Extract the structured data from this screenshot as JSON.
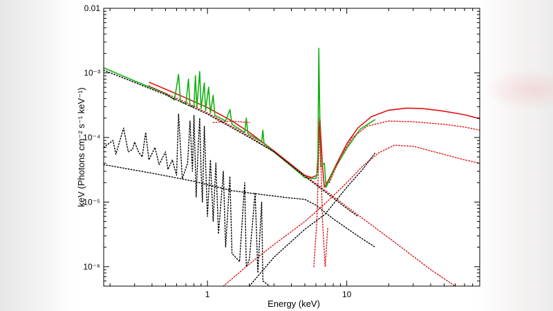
{
  "chart_data": {
    "type": "line",
    "xlabel": "Energy (keV)",
    "ylabel": "keV (Photons cm⁻² s⁻¹ keV⁻¹)",
    "x_scale": "log",
    "y_scale": "log",
    "xlim": [
      0.18,
      90
    ],
    "ylim": [
      5e-07,
      0.01
    ],
    "x_ticks": [
      {
        "value": 1,
        "label": "1"
      },
      {
        "value": 10,
        "label": "10"
      }
    ],
    "y_ticks": [
      {
        "value": 0.01,
        "label": "0.01"
      },
      {
        "value": 0.001,
        "label": "10⁻³"
      },
      {
        "value": 0.0001,
        "label": "10⁻⁴"
      },
      {
        "value": 1e-05,
        "label": "10⁻⁵"
      },
      {
        "value": 1e-06,
        "label": "10⁻⁶"
      }
    ],
    "colors": {
      "red": "#e01010",
      "green": "#10b010",
      "black": "#000000"
    },
    "series": [
      {
        "color": "red",
        "style": "solid",
        "points": [
          [
            0.38,
            0.00072
          ],
          [
            0.5,
            0.00056
          ],
          [
            0.7,
            0.00041
          ],
          [
            1.0,
            0.00029
          ],
          [
            1.5,
            0.00018
          ],
          [
            2.0,
            0.00012
          ],
          [
            3.0,
            6.2e-05
          ],
          [
            4.0,
            3.8e-05
          ],
          [
            5.0,
            2.6e-05
          ],
          [
            5.6,
            2.4e-05
          ],
          [
            6.1,
            2.6e-05
          ],
          [
            6.3,
            0.0001
          ],
          [
            6.4,
            0.00021
          ],
          [
            6.5,
            0.00011
          ],
          [
            6.7,
            3.5e-05
          ],
          [
            6.9,
            1.7e-05
          ],
          [
            7.4,
            2.2e-05
          ],
          [
            8.5,
            4e-05
          ],
          [
            10,
            8e-05
          ],
          [
            12,
            0.00014
          ],
          [
            15,
            0.00021
          ],
          [
            20,
            0.000265
          ],
          [
            27,
            0.000285
          ],
          [
            35,
            0.00028
          ],
          [
            50,
            0.000255
          ],
          [
            70,
            0.000225
          ],
          [
            90,
            0.000195
          ]
        ]
      },
      {
        "color": "green",
        "style": "solid",
        "points": [
          [
            0.18,
            0.0012
          ],
          [
            0.3,
            0.00075
          ],
          [
            0.5,
            0.00048
          ],
          [
            0.58,
            0.00038
          ],
          [
            0.62,
            0.00095
          ],
          [
            0.64,
            0.00036
          ],
          [
            0.7,
            0.00033
          ],
          [
            0.73,
            0.0008
          ],
          [
            0.75,
            0.00031
          ],
          [
            0.8,
            0.0003
          ],
          [
            0.82,
            0.0009
          ],
          [
            0.84,
            0.00029
          ],
          [
            0.88,
            0.00105
          ],
          [
            0.9,
            0.00028
          ],
          [
            0.95,
            0.0007
          ],
          [
            0.97,
            0.00026
          ],
          [
            1.02,
            0.0006
          ],
          [
            1.05,
            0.00024
          ],
          [
            1.1,
            0.00045
          ],
          [
            1.13,
            0.00022
          ],
          [
            1.35,
            0.00018
          ],
          [
            1.45,
            0.00027
          ],
          [
            1.5,
            0.00016
          ],
          [
            1.85,
            0.00012
          ],
          [
            1.9,
            0.0002
          ],
          [
            1.95,
            0.000115
          ],
          [
            2.45,
            8.5e-05
          ],
          [
            2.5,
            0.00013
          ],
          [
            2.55,
            8e-05
          ],
          [
            3.0,
            6e-05
          ],
          [
            4.0,
            3.6e-05
          ],
          [
            5.0,
            2.4e-05
          ],
          [
            6.0,
            2.3e-05
          ],
          [
            6.2,
            3.2e-05
          ],
          [
            6.3,
            0.0024
          ],
          [
            6.4,
            0.00023
          ],
          [
            6.5,
            3.5e-05
          ],
          [
            6.9,
            4e-05
          ],
          [
            7.1,
            1.7e-05
          ],
          [
            8.0,
            3e-05
          ],
          [
            10,
            6.8e-05
          ],
          [
            12.5,
            0.000135
          ],
          [
            16,
            0.00019
          ]
        ]
      },
      {
        "color": "red",
        "style": "dotted",
        "points": [
          [
            0.38,
            0.00063
          ],
          [
            0.7,
            0.00035
          ],
          [
            1.0,
            0.00024
          ],
          [
            2.0,
            0.000105
          ],
          [
            3.0,
            6e-05
          ],
          [
            5.0,
            2.6e-05
          ],
          [
            10,
            8.5e-06
          ],
          [
            20,
            2.8e-06
          ],
          [
            40,
            9e-07
          ],
          [
            60,
            5e-07
          ]
        ]
      },
      {
        "color": "red",
        "style": "dotted",
        "points": [
          [
            1.3,
            5e-07
          ],
          [
            2.0,
            1.1e-06
          ],
          [
            3.0,
            2.2e-06
          ],
          [
            5.0,
            5e-06
          ],
          [
            7.0,
            9.5e-06
          ],
          [
            10,
            2e-05
          ],
          [
            13,
            3.6e-05
          ],
          [
            17,
            5.8e-05
          ],
          [
            22,
            7.6e-05
          ],
          [
            30,
            7.3e-05
          ],
          [
            45,
            5.8e-05
          ],
          [
            70,
            4.5e-05
          ],
          [
            90,
            4e-05
          ]
        ]
      },
      {
        "color": "red",
        "style": "dotted",
        "points": [
          [
            7.5,
            2e-05
          ],
          [
            9,
            5e-05
          ],
          [
            11,
            0.0001
          ],
          [
            14,
            0.00015
          ],
          [
            20,
            0.00018
          ],
          [
            30,
            0.000175
          ],
          [
            50,
            0.00016
          ],
          [
            70,
            0.000145
          ],
          [
            90,
            0.00013
          ]
        ]
      },
      {
        "color": "red",
        "style": "dotted",
        "points": [
          [
            1.1,
            0.00017
          ],
          [
            1.5,
            0.00018
          ],
          [
            2.0,
            0.00017
          ]
        ]
      },
      {
        "color": "red",
        "style": "dotted",
        "points": [
          [
            5.8,
            1e-06
          ],
          [
            6.1,
            5e-06
          ],
          [
            6.4,
            0.00018
          ],
          [
            6.7,
            5e-06
          ],
          [
            7.0,
            1e-06
          ],
          [
            7.3,
            4e-06
          ]
        ]
      },
      {
        "color": "black",
        "style": "dotted",
        "points": [
          [
            0.18,
            0.0011
          ],
          [
            0.5,
            0.00046
          ],
          [
            1.0,
            0.00023
          ],
          [
            2.0,
            0.0001
          ],
          [
            3.0,
            6e-05
          ],
          [
            5.0,
            2.5e-05
          ],
          [
            10,
            8e-06
          ],
          [
            12,
            6e-06
          ]
        ]
      },
      {
        "color": "black",
        "style": "dotted",
        "points": [
          [
            0.18,
            3.8e-05
          ],
          [
            0.4,
            2.8e-05
          ],
          [
            0.8,
            2.1e-05
          ],
          [
            1.5,
            1.5e-05
          ],
          [
            2.5,
            1.3e-05
          ],
          [
            4.0,
            1.15e-05
          ],
          [
            5.0,
            1.1e-05
          ],
          [
            6.0,
            9e-06
          ],
          [
            8.0,
            5.5e-06
          ],
          [
            12,
            3e-06
          ],
          [
            16,
            2e-06
          ]
        ]
      },
      {
        "color": "black",
        "style": "dotted",
        "points": [
          [
            2.0,
            5e-07
          ],
          [
            3.0,
            1.4e-06
          ],
          [
            5.0,
            3.8e-06
          ],
          [
            7.0,
            6.5e-06
          ],
          [
            10,
            1.7e-05
          ],
          [
            13,
            3.2e-05
          ],
          [
            16,
            5.8e-05
          ]
        ]
      },
      {
        "color": "black",
        "style": "dotted",
        "points": [
          [
            0.18,
            7e-05
          ],
          [
            0.21,
            9e-05
          ],
          [
            0.22,
            5.5e-05
          ],
          [
            0.25,
            0.00014
          ],
          [
            0.27,
            6e-05
          ],
          [
            0.29,
            6.5e-05
          ],
          [
            0.3,
            8.5e-05
          ],
          [
            0.32,
            6e-05
          ],
          [
            0.34,
            5e-05
          ],
          [
            0.36,
            0.00012
          ],
          [
            0.38,
            4.5e-05
          ],
          [
            0.42,
            7e-05
          ],
          [
            0.45,
            3.8e-05
          ],
          [
            0.5,
            6e-05
          ],
          [
            0.52,
            3.2e-05
          ],
          [
            0.56,
            4.5e-05
          ],
          [
            0.6,
            2.6e-05
          ],
          [
            0.62,
            0.00023
          ],
          [
            0.66,
            2.3e-05
          ],
          [
            0.72,
            4e-05
          ],
          [
            0.75,
            0.00018
          ],
          [
            0.78,
            3e-05
          ],
          [
            0.8,
            0.00022
          ],
          [
            0.83,
            1.2e-05
          ],
          [
            0.86,
            8e-05
          ],
          [
            0.88,
            0.0002
          ],
          [
            0.9,
            3e-05
          ],
          [
            0.92,
            1e-05
          ],
          [
            0.95,
            0.00015
          ],
          [
            1.0,
            6e-06
          ],
          [
            1.05,
            4.5e-05
          ],
          [
            1.1,
            5e-06
          ],
          [
            1.15,
            4e-05
          ],
          [
            1.2,
            3.2e-06
          ],
          [
            1.3,
            3e-05
          ],
          [
            1.35,
            2e-06
          ],
          [
            1.45,
            2.5e-05
          ],
          [
            1.5,
            1.6e-06
          ],
          [
            1.7,
            1.2e-06
          ],
          [
            1.85,
            2e-05
          ],
          [
            1.9,
            1e-06
          ],
          [
            2.0,
            1.3e-06
          ],
          [
            2.2,
            1.4e-05
          ],
          [
            2.3,
            8e-07
          ],
          [
            2.45,
            1e-05
          ],
          [
            2.5,
            6e-07
          ],
          [
            2.8,
            5e-07
          ]
        ]
      }
    ]
  }
}
